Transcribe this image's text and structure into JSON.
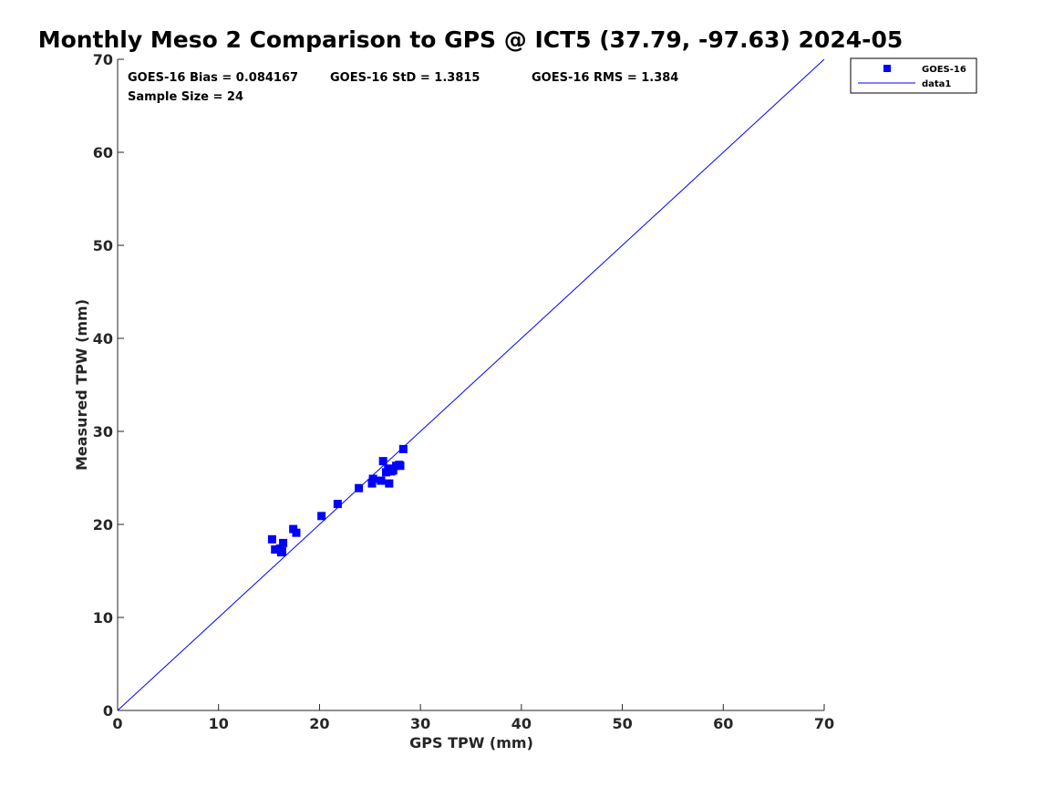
{
  "chart_data": {
    "type": "scatter",
    "title": "Monthly Meso 2 Comparison to GPS @ ICT5 (37.79, -97.63) 2024-05",
    "xlabel": "GPS TPW (mm)",
    "ylabel": "Measured TPW (mm)",
    "xlim": [
      0,
      70
    ],
    "ylim": [
      0,
      70
    ],
    "xticks": [
      0,
      10,
      20,
      30,
      40,
      50,
      60,
      70
    ],
    "yticks": [
      0,
      10,
      20,
      30,
      40,
      50,
      60,
      70
    ],
    "grid": false,
    "legend_position": "top-right-outside",
    "stats": {
      "bias": "GOES-16 Bias = 0.084167",
      "std": "GOES-16 StD = 1.3815",
      "rms": "GOES-16 RMS = 1.384",
      "sample_size": "Sample Size = 24"
    },
    "series": [
      {
        "name": "GOES-16",
        "kind": "scatter",
        "marker": "square",
        "color": "#0000ff",
        "points": [
          [
            15.3,
            18.4
          ],
          [
            15.6,
            17.3
          ],
          [
            16.1,
            17.4
          ],
          [
            16.2,
            17.0
          ],
          [
            16.3,
            17.1
          ],
          [
            16.4,
            18.0
          ],
          [
            17.4,
            19.5
          ],
          [
            17.7,
            19.1
          ],
          [
            20.2,
            20.9
          ],
          [
            21.8,
            22.2
          ],
          [
            23.9,
            23.9
          ],
          [
            25.2,
            24.4
          ],
          [
            25.3,
            24.9
          ],
          [
            26.1,
            24.7
          ],
          [
            26.3,
            26.8
          ],
          [
            26.6,
            25.6
          ],
          [
            26.8,
            26.0
          ],
          [
            26.9,
            24.4
          ],
          [
            27.1,
            25.7
          ],
          [
            27.3,
            25.8
          ],
          [
            27.6,
            26.3
          ],
          [
            27.9,
            26.4
          ],
          [
            28.0,
            26.3
          ],
          [
            28.3,
            28.1
          ]
        ]
      },
      {
        "name": "data1",
        "kind": "line",
        "color": "#0000ff",
        "points": [
          [
            0,
            0
          ],
          [
            70,
            70
          ]
        ]
      }
    ]
  }
}
